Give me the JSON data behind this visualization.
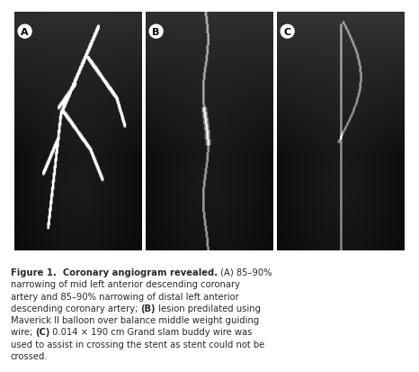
{
  "fig_width": 4.66,
  "fig_height": 4.14,
  "dpi": 100,
  "bg_color": "#ffffff",
  "panel_bg_color": "#f0d0d0",
  "label_fontsize": 8,
  "caption_fontsize": 7.2,
  "caption_text_color": "#2a2a2a",
  "image_panels": [
    "A",
    "B",
    "C"
  ],
  "caption_lines": [
    [
      [
        "Figure 1.  Coronary angiogram revealed.",
        true
      ],
      [
        " (A) 85–90%",
        false
      ]
    ],
    [
      [
        "narrowing of mid left anterior descending coronary",
        false
      ]
    ],
    [
      [
        "artery and 85–90% narrowing of distal left anterior",
        false
      ]
    ],
    [
      [
        "descending coronary artery; ",
        false
      ],
      [
        "(B)",
        true
      ],
      [
        " lesion predilated using",
        false
      ]
    ],
    [
      [
        "Maverick II balloon over balance middle weight guiding",
        false
      ]
    ],
    [
      [
        "wire; ",
        false
      ],
      [
        "(C)",
        true
      ],
      [
        " 0.014 × 190 cm Grand slam buddy wire was",
        false
      ]
    ],
    [
      [
        "used to assist in crossing the stent as stent could not be",
        false
      ]
    ],
    [
      [
        "crossed.",
        false
      ]
    ]
  ]
}
